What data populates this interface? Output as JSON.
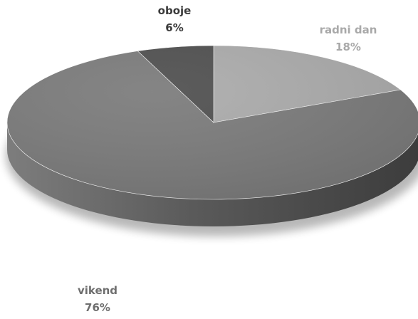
{
  "chart_data": {
    "type": "pie",
    "style": "3d",
    "slices": [
      {
        "label": "radni dan",
        "value": 18,
        "value_label": "18%",
        "color": "#ababab",
        "label_color": "#a9a9a9"
      },
      {
        "label": "vikend",
        "value": 76,
        "value_label": "76%",
        "color": "#7a7a7a",
        "label_color": "#6e6e6e"
      },
      {
        "label": "oboje",
        "value": 6,
        "value_label": "6%",
        "color": "#4e4e4e",
        "label_color": "#3a3a3a"
      }
    ],
    "legend": "none"
  }
}
